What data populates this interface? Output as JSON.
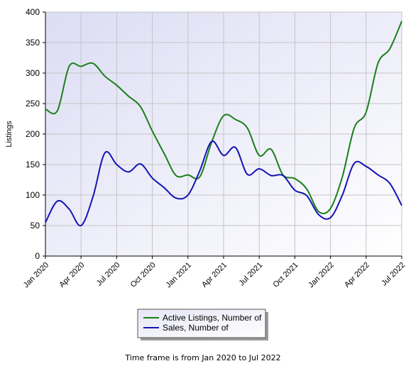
{
  "chart_data": {
    "type": "line",
    "ylabel": "Listings",
    "ylim": [
      0,
      400
    ],
    "yticks": [
      0,
      50,
      100,
      150,
      200,
      250,
      300,
      350,
      400
    ],
    "xticks": [
      "Jan 2020",
      "Apr 2020",
      "Jul 2020",
      "Oct 2020",
      "Jan 2021",
      "Apr 2021",
      "Jul 2021",
      "Oct 2021",
      "Jan 2022",
      "Apr 2022",
      "Jul 2022"
    ],
    "x": [
      "2020-01",
      "2020-02",
      "2020-03",
      "2020-04",
      "2020-05",
      "2020-06",
      "2020-07",
      "2020-08",
      "2020-09",
      "2020-10",
      "2020-11",
      "2020-12",
      "2021-01",
      "2021-02",
      "2021-03",
      "2021-04",
      "2021-05",
      "2021-06",
      "2021-07",
      "2021-08",
      "2021-09",
      "2021-10",
      "2021-11",
      "2021-12",
      "2022-01",
      "2022-02",
      "2022-03",
      "2022-04",
      "2022-05",
      "2022-06",
      "2022-07"
    ],
    "grid": true,
    "legend_placement": "bottom",
    "series": [
      {
        "name": "Active Listings, Number of",
        "color": "#1a7f1a",
        "values": [
          241,
          238,
          311,
          311,
          316,
          295,
          280,
          262,
          245,
          205,
          168,
          132,
          133,
          130,
          187,
          230,
          224,
          210,
          165,
          175,
          133,
          127,
          110,
          73,
          78,
          130,
          210,
          236,
          316,
          340,
          385
        ]
      },
      {
        "name": "Sales, Number of",
        "color": "#1414b4",
        "values": [
          55,
          90,
          77,
          50,
          97,
          169,
          150,
          138,
          151,
          128,
          112,
          95,
          100,
          140,
          188,
          165,
          178,
          134,
          143,
          132,
          132,
          108,
          99,
          68,
          63,
          100,
          152,
          147,
          133,
          119,
          83
        ]
      }
    ]
  },
  "footer": {
    "text": "Time frame is from Jan 2020 to Jul 2022"
  }
}
